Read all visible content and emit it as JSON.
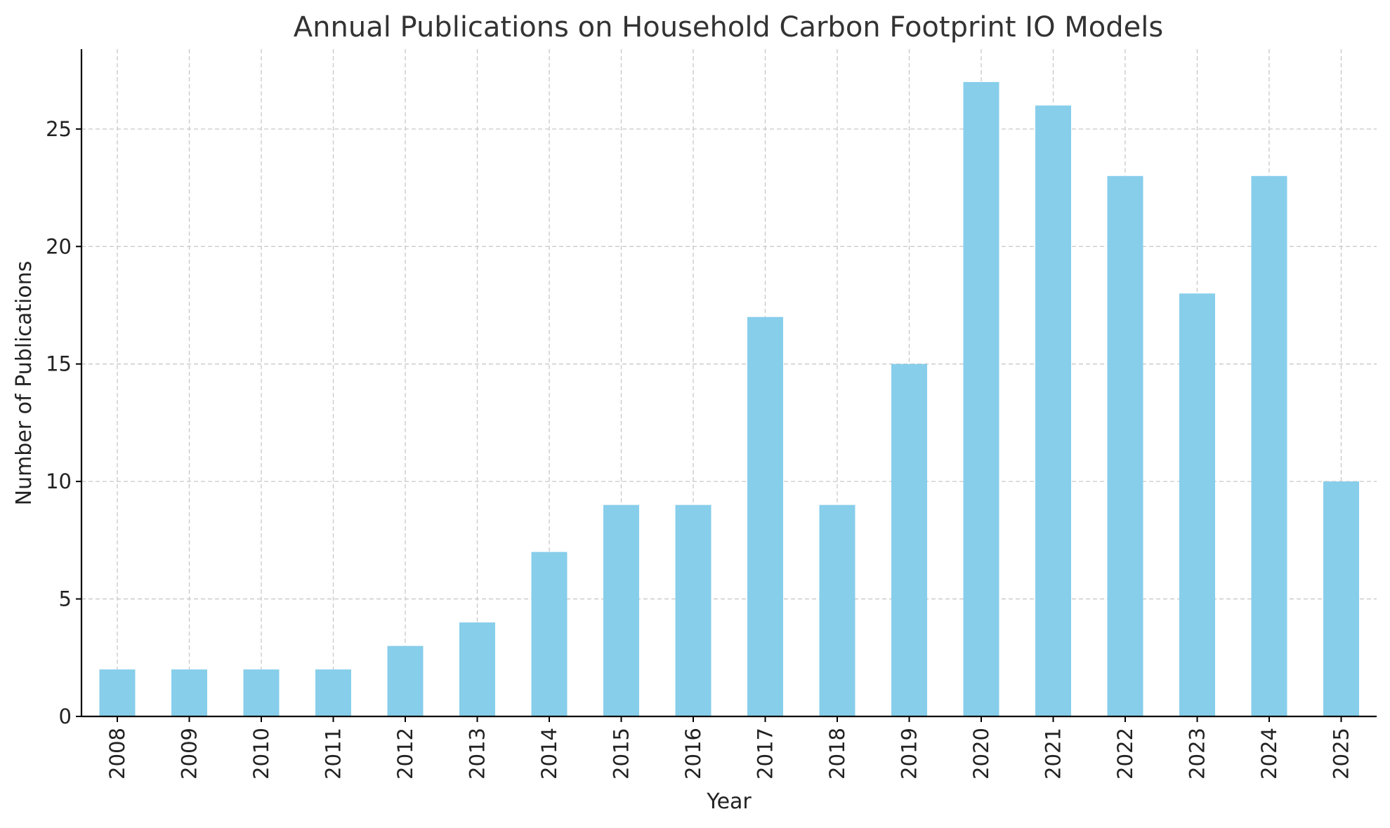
{
  "chart_data": {
    "type": "bar",
    "title": "Annual Publications on Household Carbon Footprint IO Models",
    "xlabel": "Year",
    "ylabel": "Number of Publications",
    "categories": [
      "2008",
      "2009",
      "2010",
      "2011",
      "2012",
      "2013",
      "2014",
      "2015",
      "2016",
      "2017",
      "2018",
      "2019",
      "2020",
      "2021",
      "2022",
      "2023",
      "2024",
      "2025"
    ],
    "values": [
      2,
      2,
      2,
      2,
      3,
      4,
      7,
      9,
      9,
      17,
      9,
      15,
      27,
      26,
      23,
      18,
      23,
      10
    ],
    "ylim": [
      0,
      28.4
    ],
    "yticks": [
      0,
      5,
      10,
      15,
      20,
      25
    ],
    "grid": true,
    "bar_color": "#87ceeb",
    "xtick_rotation": "vertical",
    "legend": "none"
  }
}
